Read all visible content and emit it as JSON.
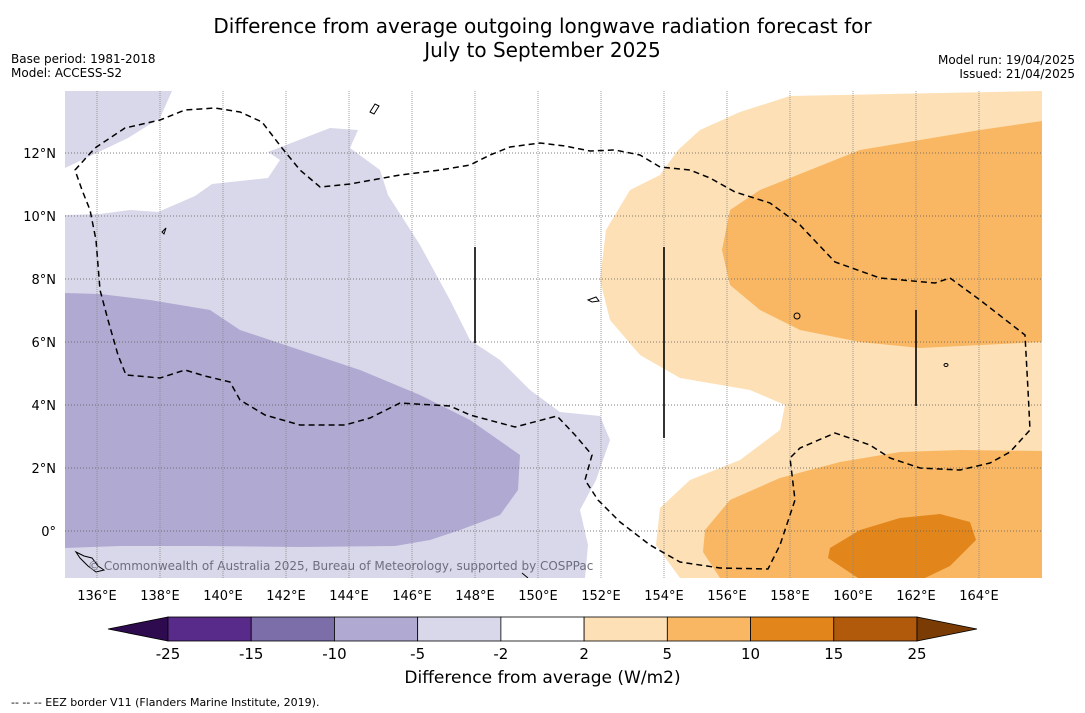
{
  "title_line1": "Difference from average outgoing longwave radiation forecast for",
  "title_line2": "July to September 2025",
  "base_period": "Base period: 1981-2018",
  "model": "Model: ACCESS-S2",
  "model_run": "Model run: 19/04/2025",
  "issued": "Issued: 21/04/2025",
  "copyright": "© Commonwealth of Australia 2025, Bureau of Meteorology, supported by COSPPac",
  "lon_labels": [
    "136°E",
    "138°E",
    "140°E",
    "142°E",
    "144°E",
    "146°E",
    "148°E",
    "150°E",
    "152°E",
    "154°E",
    "156°E",
    "158°E",
    "160°E",
    "162°E",
    "164°E"
  ],
  "lat_labels": [
    "12°N",
    "10°N",
    "8°N",
    "6°N",
    "4°N",
    "2°N",
    "0°"
  ],
  "colorbar": {
    "title": "Difference from average (W/m2)",
    "ticks": [
      "-25",
      "-15",
      "-10",
      "-5",
      "-2",
      "2",
      "5",
      "10",
      "15",
      "25"
    ],
    "colors": [
      "#2e0b4e",
      "#582a8a",
      "#7b6ea9",
      "#b0a9d1",
      "#d8d8ea",
      "#ffffff",
      "#fde0b5",
      "#f9b763",
      "#e2861c",
      "#b15a0c",
      "#7a3b05"
    ]
  },
  "footer": "-- -- -- EEZ border V11 (Flanders Marine Institute, 2019)."
}
